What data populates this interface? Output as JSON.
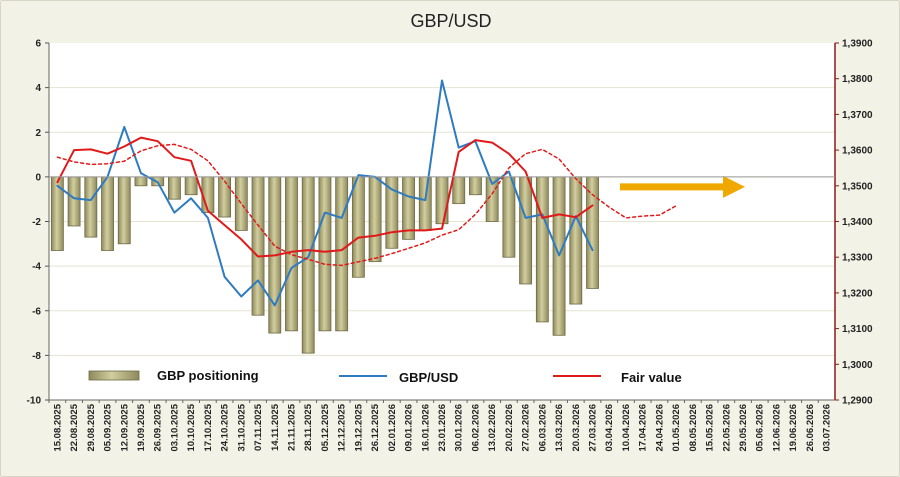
{
  "chart_data": {
    "type": "bar",
    "title": "GBP/USD",
    "x_categories": [
      "15.08.2025",
      "22.08.2025",
      "29.08.2025",
      "05.09.2025",
      "12.09.2025",
      "19.09.2025",
      "26.09.2025",
      "03.10.2025",
      "10.10.2025",
      "17.10.2025",
      "24.10.2025",
      "31.10.2025",
      "07.11.2025",
      "14.11.2025",
      "21.11.2025",
      "28.11.2025",
      "05.12.2025",
      "12.12.2025",
      "19.12.2025",
      "26.12.2025",
      "02.01.2026",
      "09.01.2026",
      "16.01.2026",
      "23.01.2026",
      "30.01.2026",
      "06.02.2026",
      "13.02.2026",
      "20.02.2026",
      "27.02.2026",
      "06.03.2026",
      "13.03.2026",
      "20.03.2026",
      "27.03.2026",
      "03.04.2026",
      "10.04.2026",
      "17.04.2026",
      "24.04.2026",
      "01.05.2026",
      "08.05.2026",
      "15.05.2026",
      "22.05.2026",
      "29.05.2026",
      "05.06.2026",
      "12.06.2026",
      "19.06.2026",
      "26.06.2026",
      "03.07.2026"
    ],
    "y_left": {
      "min": -10,
      "max": 6,
      "ticks": [
        "-10",
        "-8",
        "-6",
        "-4",
        "-2",
        "0",
        "2",
        "4",
        "6"
      ]
    },
    "y_right": {
      "min": 1.29,
      "max": 1.39,
      "ticks": [
        "1,2900",
        "1,3000",
        "1,3100",
        "1,3200",
        "1,3300",
        "1,3400",
        "1,3500",
        "1,3600",
        "1,3700",
        "1,3800",
        "1,3900"
      ]
    },
    "series": [
      {
        "name": "GBP positioning",
        "kind": "bar",
        "axis": "left",
        "color": "#b3ae80",
        "values": [
          -3.3,
          -2.2,
          -2.7,
          -3.3,
          -3.0,
          -0.4,
          -0.4,
          -1.0,
          -0.8,
          -1.6,
          -1.8,
          -2.4,
          -6.2,
          -7.0,
          -6.9,
          -7.9,
          -6.9,
          -6.9,
          -4.5,
          -3.8,
          -3.2,
          -2.8,
          -2.4,
          -2.1,
          -1.2,
          -0.8,
          -2.0,
          -3.6,
          -4.8,
          -6.5,
          -7.1,
          -5.7,
          -5.0
        ]
      },
      {
        "name": "GBP/USD",
        "kind": "line",
        "axis": "right",
        "color": "#2e7bc0",
        "values": [
          1.35,
          1.3465,
          1.346,
          1.3525,
          1.3665,
          1.3535,
          1.351,
          1.3425,
          1.3465,
          1.341,
          1.3245,
          1.319,
          1.3235,
          1.3165,
          1.327,
          1.33,
          1.3425,
          1.341,
          1.353,
          1.3525,
          1.349,
          1.347,
          1.346,
          1.3795,
          1.3607,
          1.3625,
          1.3505,
          1.354,
          1.341,
          1.342,
          1.3305,
          1.3415,
          1.332
        ]
      },
      {
        "name": "Fair value",
        "kind": "line",
        "axis": "right",
        "color": "#e01a1a",
        "values": [
          1.351,
          1.36,
          1.3602,
          1.359,
          1.361,
          1.3635,
          1.3625,
          1.358,
          1.357,
          1.343,
          1.339,
          1.335,
          1.3302,
          1.3305,
          1.3315,
          1.332,
          1.3315,
          1.332,
          1.3355,
          1.336,
          1.337,
          1.3375,
          1.3375,
          1.338,
          1.3595,
          1.3628,
          1.3621,
          1.359,
          1.354,
          1.341,
          1.342,
          1.3412,
          1.3445
        ]
      },
      {
        "name": "Fair value trend",
        "kind": "dashed-line",
        "axis": "right",
        "color": "#e01a1a",
        "values": [
          1.358,
          1.3567,
          1.356,
          1.3562,
          1.3569,
          1.3598,
          1.3612,
          1.3616,
          1.3602,
          1.357,
          1.3513,
          1.345,
          1.339,
          1.3331,
          1.3307,
          1.3294,
          1.328,
          1.3277,
          1.3287,
          1.3297,
          1.331,
          1.3325,
          1.334,
          1.3362,
          1.3377,
          1.342,
          1.3478,
          1.355,
          1.359,
          1.3602,
          1.3575,
          1.352,
          1.3475,
          1.344,
          1.341,
          1.3415,
          1.3418,
          1.3444
        ]
      }
    ],
    "forecast_arrow": {
      "color": "#f0a800",
      "direction": "right"
    },
    "legend": [
      {
        "label": "GBP positioning",
        "symbol": "bar"
      },
      {
        "label": "GBP/USD",
        "symbol": "line"
      },
      {
        "label": "Fair value",
        "symbol": "line"
      }
    ]
  }
}
